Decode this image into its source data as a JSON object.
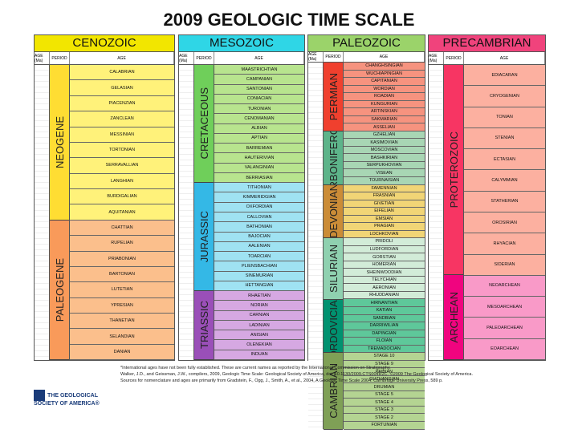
{
  "title": "2009 GEOLOGIC TIME SCALE",
  "column_headers": {
    "age": "AGE (Ma)",
    "period": "PERIOD",
    "stage": "AGE"
  },
  "panels": [
    {
      "title": "CENOZOIC",
      "color": "#f2e600",
      "periods": [
        {
          "name": "NEOGENE",
          "color": "#ffdd33",
          "stage_color": "#fff27a",
          "stages": [
            "CALABRIAN",
            "GELASIAN",
            "PIACENZIAN",
            "ZANCLEAN",
            "MESSINIAN",
            "TORTONIAN",
            "SERRAVALLIAN",
            "LANGHIAN",
            "BURDIGALIAN",
            "AQUITANIAN"
          ]
        },
        {
          "name": "PALEOGENE",
          "color": "#f99a5a",
          "stage_color": "#fbbf8c",
          "stages": [
            "CHATTIAN",
            "RUPELIAN",
            "PRIABONIAN",
            "BARTONIAN",
            "LUTETIAN",
            "YPRESIAN",
            "THANETIAN",
            "SELANDIAN",
            "DANIAN"
          ]
        }
      ]
    },
    {
      "title": "MESOZOIC",
      "color": "#2fd6e6",
      "periods": [
        {
          "name": "CRETACEOUS",
          "color": "#6fcf5a",
          "stage_color": "#b8e48e",
          "stages": [
            "MAASTRICHTIAN",
            "CAMPANIAN",
            "SANTONIAN",
            "CONIACIAN",
            "TURONIAN",
            "CENOMANIAN",
            "ALBIAN",
            "APTIAN",
            "BARREMIAN",
            "HAUTERIVIAN",
            "VALANGINIAN",
            "BERRIASIAN"
          ]
        },
        {
          "name": "JURASSIC",
          "color": "#34b8e6",
          "stage_color": "#9fe2f2",
          "stages": [
            "TITHONIAN",
            "KIMMERIDGIAN",
            "OXFORDIAN",
            "CALLOVIAN",
            "BATHONIAN",
            "BAJOCIAN",
            "AALENIAN",
            "TOARCIAN",
            "PLIENSBACHIAN",
            "SINEMURIAN",
            "HETTANGIAN"
          ]
        },
        {
          "name": "TRIASSIC",
          "color": "#9a4fb8",
          "stage_color": "#d6a8e2",
          "stages": [
            "RHAETIAN",
            "NORIAN",
            "CARNIAN",
            "LADINIAN",
            "ANISIAN",
            "OLENEKIAN",
            "INDUAN"
          ]
        }
      ]
    },
    {
      "title": "PALEOZOIC",
      "color": "#9bd36a",
      "periods": [
        {
          "name": "PERMIAN",
          "color": "#f0402e",
          "stage_color": "#f6937f",
          "stages": [
            "CHANGHSINGIAN",
            "WUCHIAPINGIAN",
            "CAPITANIAN",
            "WORDIAN",
            "ROADIAN",
            "KUNGURIAN",
            "ARTINSKIAN",
            "SAKMARIAN",
            "ASSELIAN"
          ]
        },
        {
          "name": "CARBONIFEROUS",
          "color": "#5db48a",
          "stage_color": "#a8d6b4",
          "stages": [
            "GZHELIAN",
            "KASIMOVIAN",
            "MOSCOVIAN",
            "BASHKIRIAN",
            "SERPUKHOVIAN",
            "VISEAN",
            "TOURNAISIAN"
          ]
        },
        {
          "name": "DEVONIAN",
          "color": "#cb8c37",
          "stage_color": "#f1d576",
          "stages": [
            "FAMENNIAN",
            "FRASNIAN",
            "GIVETIAN",
            "EIFELIAN",
            "EMSIAN",
            "PRAGIAN",
            "LOCHKOVIAN"
          ]
        },
        {
          "name": "SILURIAN",
          "color": "#8fd1b0",
          "stage_color": "#d2ecd8",
          "stages": [
            "PRIDOLI",
            "LUDFORDIAN",
            "GORSTIAN",
            "HOMERIAN",
            "SHEINWOODIAN",
            "TELYCHIAN",
            "AERONIAN",
            "RHUDDANIAN"
          ]
        },
        {
          "name": "ORDOVICIAN",
          "color": "#009270",
          "stage_color": "#5ec89a",
          "stages": [
            "HIRNANTIAN",
            "KATIAN",
            "SANDBIAN",
            "DARRIWILIAN",
            "DAPINGIAN",
            "FLOIAN",
            "TREMADOCIAN"
          ]
        },
        {
          "name": "CAMBRIAN",
          "color": "#7fa056",
          "stage_color": "#b4d492",
          "stages": [
            "STAGE 10",
            "STAGE 9",
            "PAIBIAN",
            "GUZHANGIAN",
            "DRUMIAN",
            "STAGE 5",
            "STAGE 4",
            "STAGE 3",
            "STAGE 2",
            "FORTUNIAN"
          ]
        }
      ]
    },
    {
      "title": "PRECAMBRIAN",
      "color": "#f0437c",
      "periods": [
        {
          "name": "PROTEROZOIC",
          "color": "#f73563",
          "stage_color": "#fcb0a0",
          "stages": [
            "EDIACARAN",
            "CRYOGENIAN",
            "TONIAN",
            "STENIAN",
            "ECTASIAN",
            "CALYMMIAN",
            "STATHERIAN",
            "OROSIRIAN",
            "RHYACIAN",
            "SIDERIAN"
          ]
        },
        {
          "name": "ARCHEAN",
          "color": "#f0047f",
          "stage_color": "#f99ac8",
          "stages": [
            "NEOARCHEAN",
            "MESOARCHEAN",
            "PALEOARCHEAN",
            "EOARCHEAN"
          ]
        }
      ]
    }
  ],
  "footer": {
    "society": "THE GEOLOGICAL SOCIETY OF AMERICA®",
    "notes": [
      "*International ages have not been fully established. These are current names as reported by the International Commission on Stratigraphy.",
      "Walker, J.D., and Geissman, J.W., compilers, 2009, Geologic Time Scale: Geological Society of America, doi: 10.1130/2009.CTS004R2C. ©2009 The Geological Society of America.",
      "Sources for nomenclature and ages are primarily from Gradstein, F., Ogg, J., Smith, A., et al., 2004, A Geologic Time Scale 2004: Cambridge University Press, 589 p."
    ]
  }
}
